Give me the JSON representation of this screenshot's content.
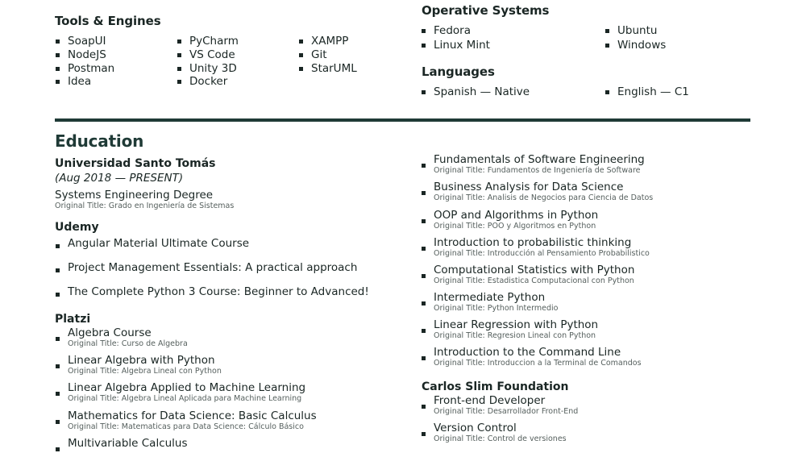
{
  "tools": {
    "heading": "Tools & Engines",
    "col1": [
      "SoapUI",
      "NodeJS",
      "Postman",
      "Idea"
    ],
    "col2": [
      "PyCharm",
      "VS Code",
      "Unity 3D",
      "Docker"
    ],
    "col3": [
      "XAMPP",
      "Git",
      "StarUML"
    ]
  },
  "os": {
    "heading": "Operative Systems",
    "col1": [
      "Fedora",
      "Linux Mint"
    ],
    "col2": [
      "Ubuntu",
      "Windows"
    ]
  },
  "languages": {
    "heading": "Languages",
    "items": [
      "Spanish — Native",
      "English — C1"
    ]
  },
  "education": {
    "heading": "Education",
    "orig_label": "Original Title:",
    "santo_tomas": {
      "name": "Universidad Santo Tomás",
      "dates": "(Aug 2018 — PRESENT)",
      "degree": "Systems Engineering Degree",
      "degree_orig": "Grado en Ingeniería de Sistemas"
    },
    "udemy": {
      "name": "Udemy",
      "courses": [
        "Angular Material Ultimate Course",
        "Project Management Essentials: A practical approach",
        "The Complete Python 3 Course: Beginner to Advanced!"
      ]
    },
    "platzi": {
      "name": "Platzi",
      "courses": [
        {
          "title": "Algebra Course",
          "orig": "Curso de Algebra"
        },
        {
          "title": "Linear Algebra with Python",
          "orig": "Algebra Lineal con Python"
        },
        {
          "title": "Linear Algebra Applied to Machine Learning",
          "orig": "Algebra Lineal Aplicada para Machine Learning"
        },
        {
          "title": "Mathematics for Data Science: Basic Calculus",
          "orig": "Matematicas para Data Science: Cálculo Básico"
        },
        {
          "title": "Multivariable Calculus",
          "orig": ""
        }
      ]
    },
    "platzi_right": [
      {
        "title": "Fundamentals of Software Engineering",
        "orig": "Fundamentos de Ingeniería de Software"
      },
      {
        "title": "Business Analysis for Data Science",
        "orig": "Analisis de Negocios para Ciencia de Datos"
      },
      {
        "title": "OOP and Algorithms in Python",
        "orig": "POO y Algoritmos en Python"
      },
      {
        "title": "Introduction to probabilistic thinking",
        "orig": "Introducción al Pensamiento Probabilistico"
      },
      {
        "title": "Computational Statistics with Python",
        "orig": "Estadistica Computacional con Python"
      },
      {
        "title": "Intermediate Python",
        "orig": "Python Intermedio"
      },
      {
        "title": "Linear Regression with Python",
        "orig": "Regresion Lineal con Python"
      },
      {
        "title": "Introduction to the Command Line",
        "orig": "Introduccion a la Terminal de Comandos"
      }
    ],
    "carlos_slim": {
      "name": "Carlos Slim Foundation",
      "courses": [
        {
          "title": "Front-end Developer",
          "orig": "Desarrollador Front-End"
        },
        {
          "title": "Version Control",
          "orig": "Control de versiones"
        }
      ]
    }
  }
}
